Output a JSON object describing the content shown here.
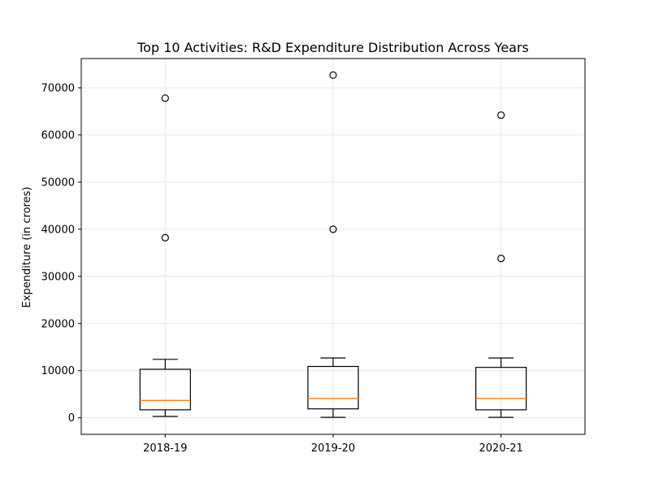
{
  "chart_data": {
    "type": "box",
    "title": "Top 10 Activities: R&D Expenditure Distribution Across Years",
    "xlabel": "",
    "ylabel": "Expenditure (in crores)",
    "ylim": [
      -3500,
      76200
    ],
    "yticks": [
      0,
      10000,
      20000,
      30000,
      40000,
      50000,
      60000,
      70000
    ],
    "grid": true,
    "categories": [
      "2018-19",
      "2019-20",
      "2020-21"
    ],
    "boxes": [
      {
        "category": "2018-19",
        "whisker_low": 300,
        "q1": 1700,
        "median": 3700,
        "q3": 10300,
        "whisker_high": 12400,
        "outliers": [
          38200,
          67800
        ]
      },
      {
        "category": "2019-20",
        "whisker_low": 100,
        "q1": 1900,
        "median": 4100,
        "q3": 10900,
        "whisker_high": 12700,
        "outliers": [
          40000,
          72700
        ]
      },
      {
        "category": "2020-21",
        "whisker_low": 100,
        "q1": 1700,
        "median": 4100,
        "q3": 10700,
        "whisker_high": 12700,
        "outliers": [
          33800,
          64200
        ]
      }
    ],
    "colors": {
      "box": "#000000",
      "median": "#ff7f0e",
      "grid": "#e6e6e6"
    }
  }
}
